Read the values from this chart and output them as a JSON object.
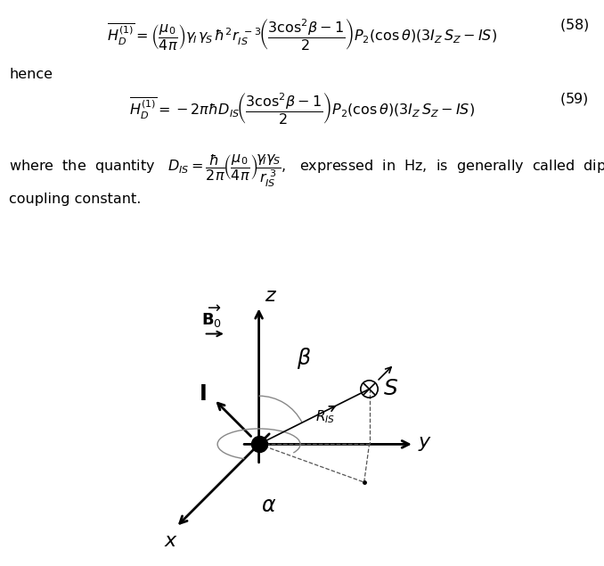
{
  "fig_width": 6.78,
  "fig_height": 6.35,
  "bg_color": "#ffffff",
  "eq_fontsize": 11.5,
  "text_fontsize": 11.5,
  "diagram_lw_axis": 2.0,
  "diagram_lw_thin": 1.2,
  "diagram_lw_dashed": 0.9
}
